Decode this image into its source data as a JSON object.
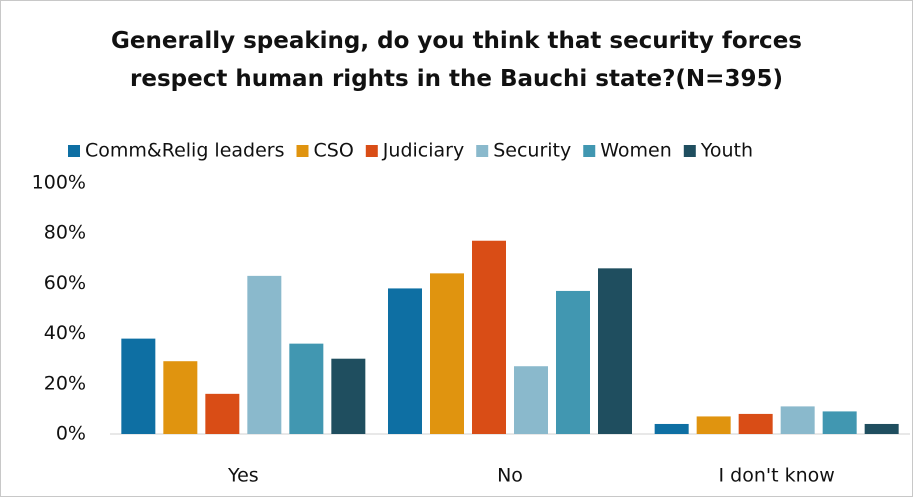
{
  "chart_data": {
    "type": "bar",
    "title": "Generally speaking, do you think that security forces respect human rights in the Bauchi state?(N=395)",
    "categories": [
      "Yes",
      "No",
      "I don't know"
    ],
    "series": [
      {
        "name": "Comm&Relig leaders",
        "color": "#0e6fa3",
        "values": [
          38,
          58,
          4
        ]
      },
      {
        "name": "CSO",
        "color": "#e0940f",
        "values": [
          29,
          64,
          7
        ]
      },
      {
        "name": "Judiciary",
        "color": "#d94d16",
        "values": [
          16,
          77,
          8
        ]
      },
      {
        "name": "Security",
        "color": "#8ab9cc",
        "values": [
          63,
          27,
          11
        ]
      },
      {
        "name": "Women",
        "color": "#4197b1",
        "values": [
          36,
          57,
          9
        ]
      },
      {
        "name": "Youth",
        "color": "#1f4e5f",
        "values": [
          30,
          66,
          4
        ]
      }
    ],
    "ylim": [
      0,
      100
    ],
    "yticks": [
      {
        "value": 0,
        "label": "0%"
      },
      {
        "value": 20,
        "label": "20%"
      },
      {
        "value": 40,
        "label": "40%"
      },
      {
        "value": 60,
        "label": "60%"
      },
      {
        "value": 80,
        "label": "80%"
      },
      {
        "value": 100,
        "label": "100%"
      }
    ],
    "grid": false,
    "legend": "top"
  }
}
